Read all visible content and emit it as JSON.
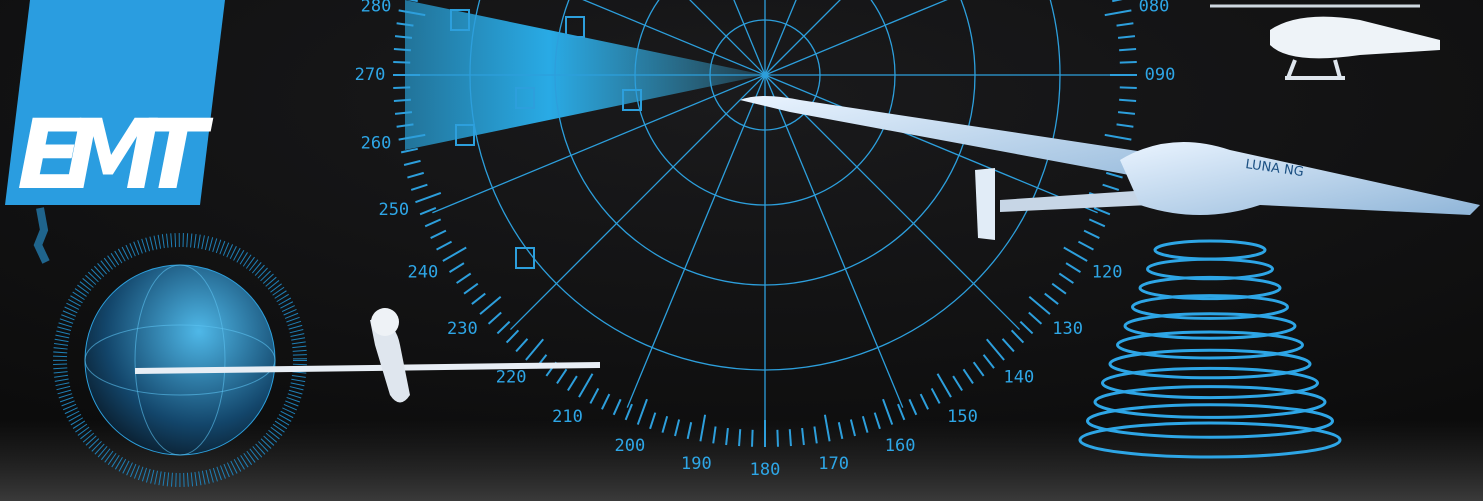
{
  "logo": {
    "text": "EMT"
  },
  "radar": {
    "labels": [
      "280",
      "270",
      "260",
      "250",
      "240",
      "230",
      "220",
      "210",
      "200",
      "190",
      "180",
      "170",
      "160",
      "150",
      "140",
      "130",
      "120",
      "090",
      "080"
    ]
  },
  "drone": {
    "label": "LUNA NG"
  }
}
